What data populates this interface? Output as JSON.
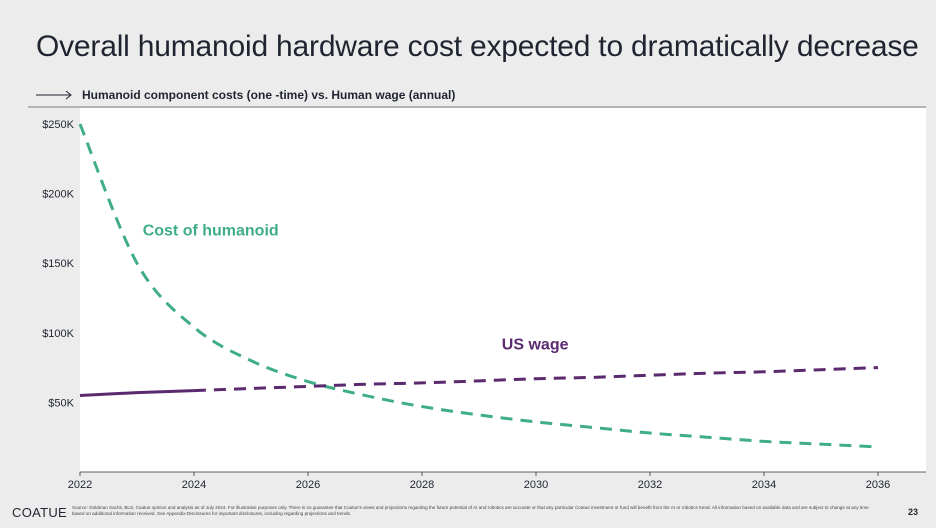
{
  "slide": {
    "title": "Overall humanoid hardware cost expected to dramatically decrease",
    "subtitle": "Humanoid component costs (one -time) vs. Human wage (annual)",
    "logo": "COATUE",
    "footnote": "Source: Goldman Sachs, BLS, Coatue opinion and analysis as of July 2024. For illustrative purposes only. There is no guarantee that Coatue's views and projections regarding the future potential of AI and robotics are accurate or that any particular Coatue investment or fund will benefit from the AI or robotics trend. All information based on available data and are subject to change at any time based on additional information received. See Appendix-Disclosures for important disclosures, including regarding projections and trends.",
    "page_number": "23"
  },
  "colors": {
    "humanoid": "#3fae84",
    "wage": "#5b2a6e",
    "text": "#1f2430"
  },
  "chart_data": {
    "type": "line",
    "title": "Humanoid component costs (one -time) vs. Human wage (annual)",
    "xlabel": "",
    "ylabel": "",
    "xlim": [
      2022,
      2036
    ],
    "ylim": [
      0,
      250
    ],
    "x_ticks": [
      2022,
      2024,
      2026,
      2028,
      2030,
      2032,
      2034,
      2036
    ],
    "y_ticks": [
      50,
      100,
      150,
      200,
      250
    ],
    "y_tick_labels": [
      "$50K",
      "$100K",
      "$150K",
      "$200K",
      "$250K"
    ],
    "grid": false,
    "series": [
      {
        "name": "Cost of humanoid",
        "label": "Cost of humanoid",
        "style": "dashed",
        "x": [
          2022,
          2023,
          2024,
          2025,
          2026,
          2027,
          2028,
          2029,
          2030,
          2031,
          2032,
          2033,
          2034,
          2035,
          2036
        ],
        "values": [
          250,
          150,
          104,
          80,
          65,
          55,
          47,
          41,
          36,
          32,
          28,
          25,
          22,
          20,
          18
        ]
      },
      {
        "name": "US wage (actual)",
        "label": "US wage",
        "style": "solid",
        "x": [
          2022,
          2023,
          2024
        ],
        "values": [
          55,
          57,
          58.5
        ]
      },
      {
        "name": "US wage (projected)",
        "label": "",
        "style": "dashed",
        "x": [
          2024,
          2025,
          2026,
          2027,
          2028,
          2029,
          2030,
          2031,
          2032,
          2033,
          2034,
          2035,
          2036
        ],
        "values": [
          58.5,
          60,
          61.5,
          63,
          64,
          65.5,
          67,
          68,
          69.5,
          71,
          72,
          73.5,
          75
        ]
      }
    ]
  }
}
